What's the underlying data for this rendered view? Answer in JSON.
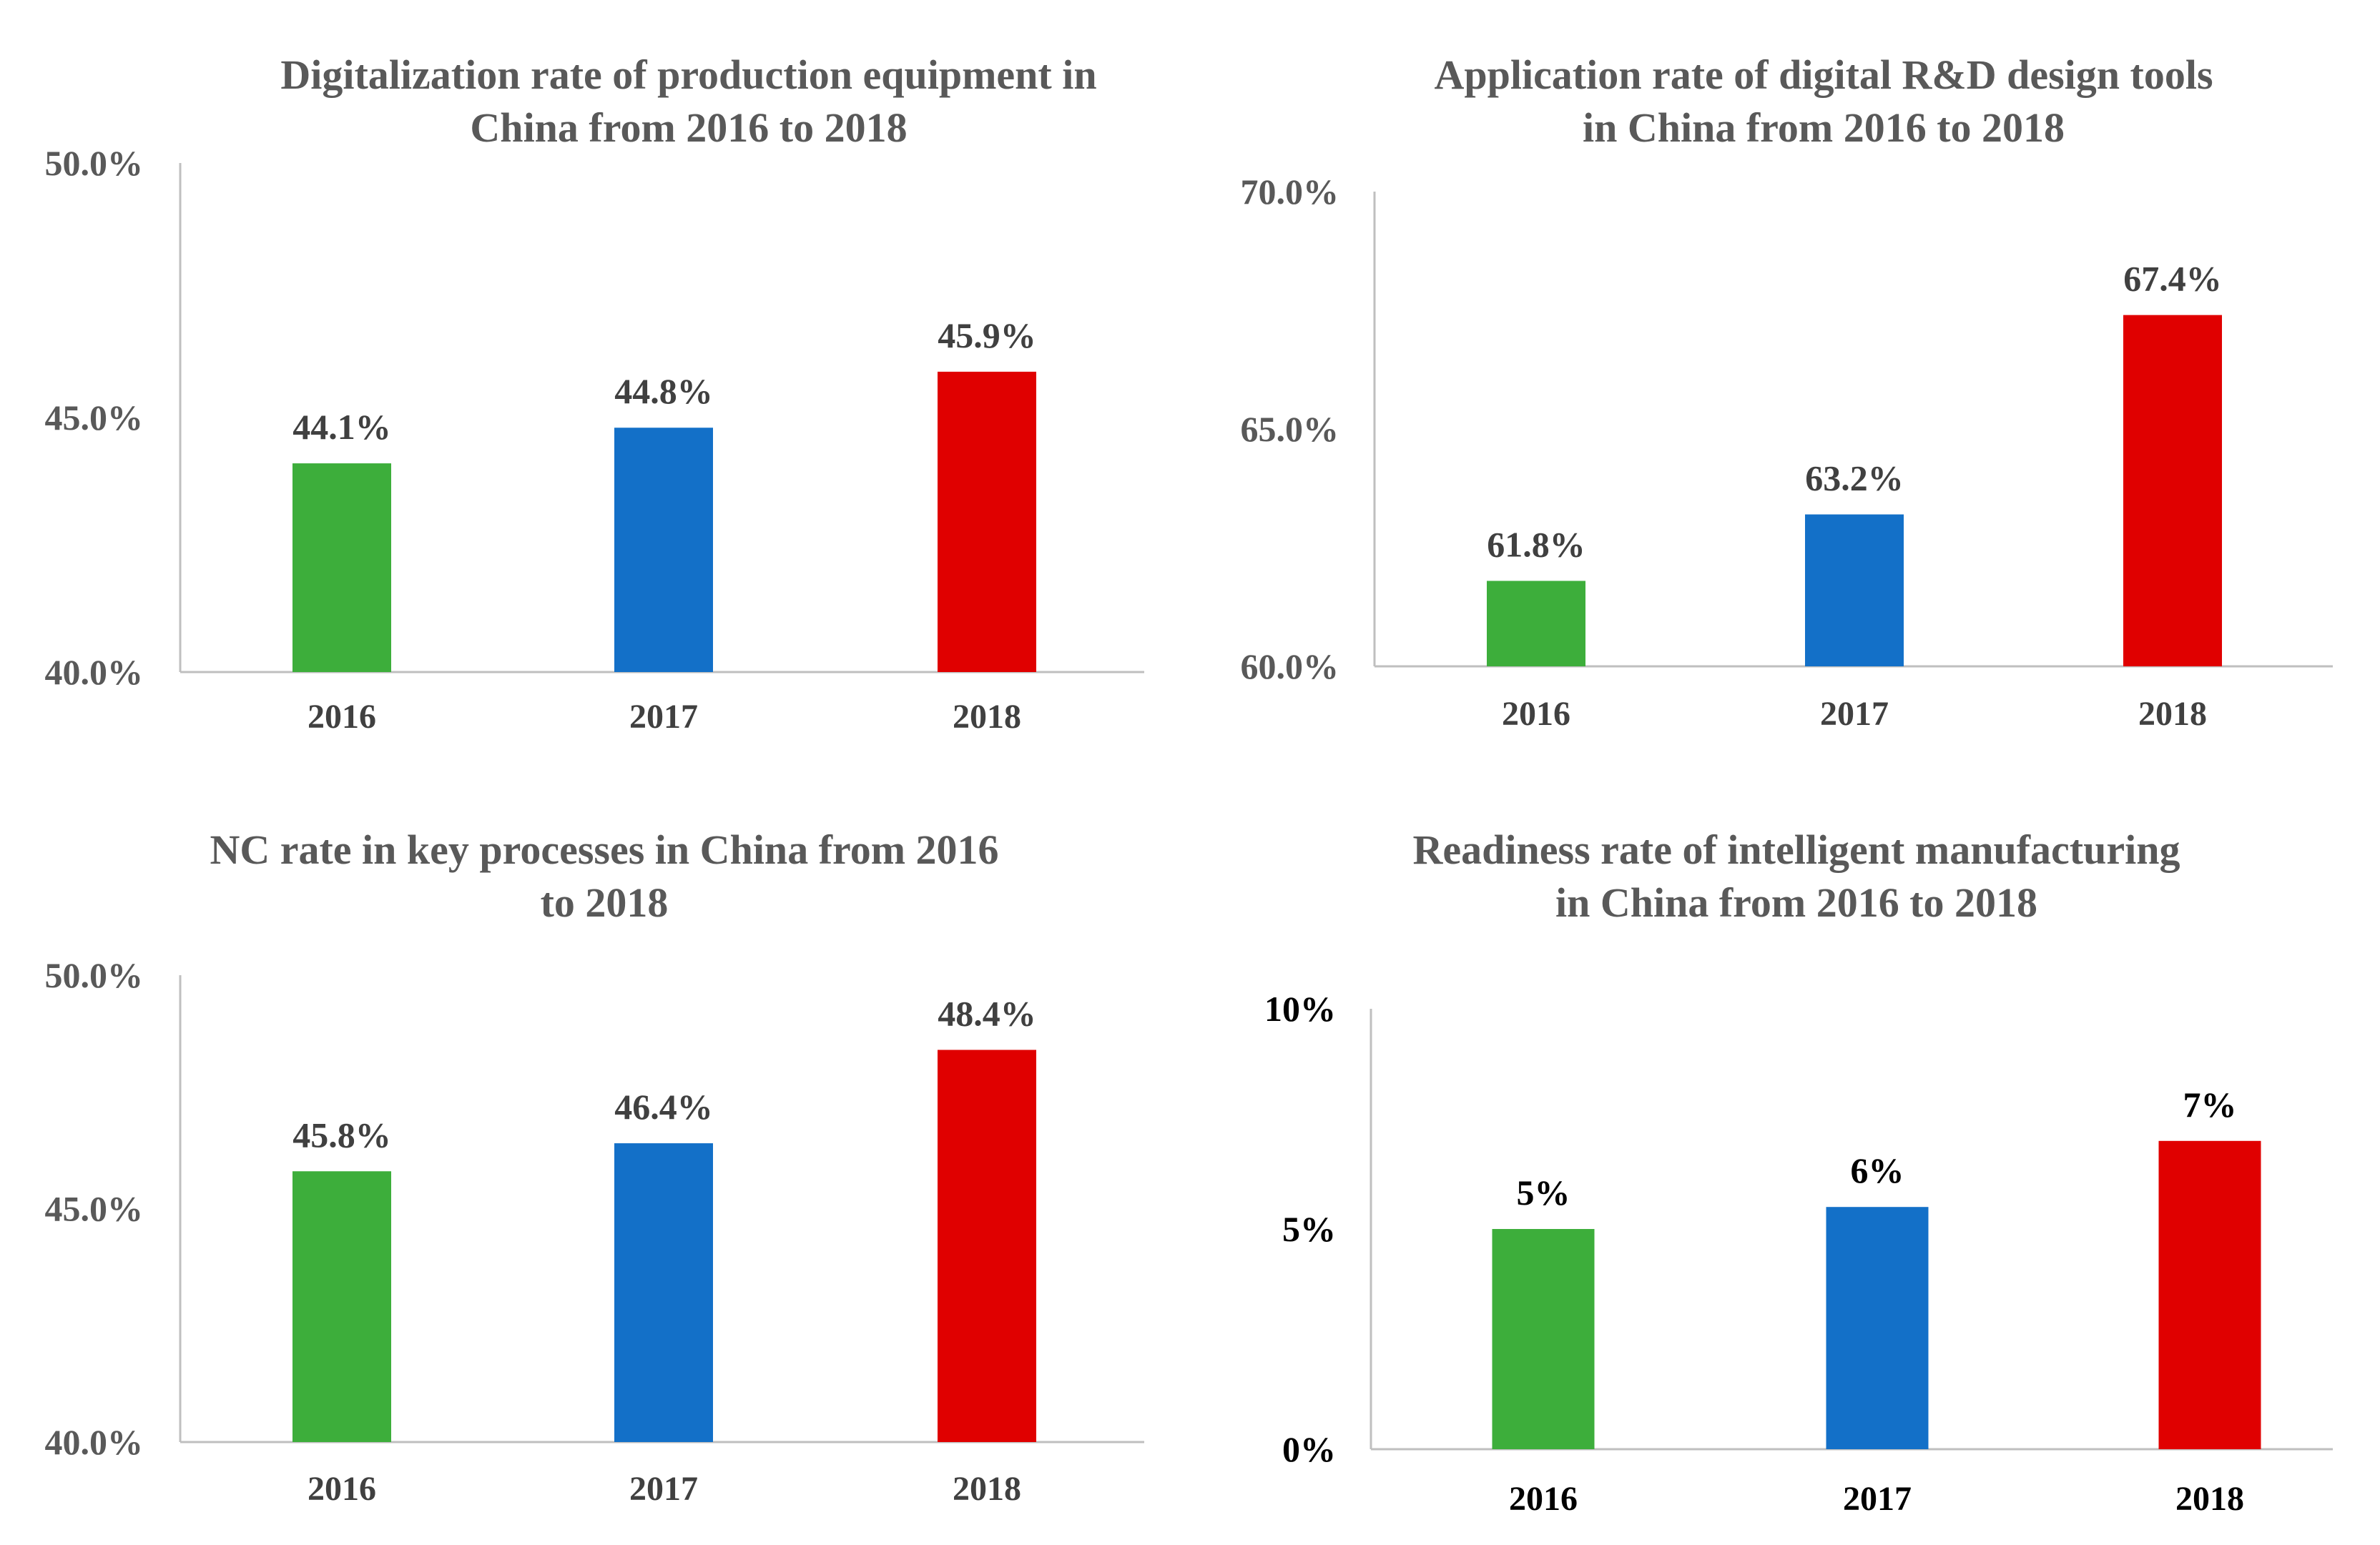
{
  "colors": [
    "#3DAE3B",
    "#1370C8",
    "#E00000"
  ],
  "chart_data": [
    {
      "type": "bar",
      "title": [
        "Digitalization rate of production equipment in",
        "China from 2016 to 2018"
      ],
      "categories": [
        "2016",
        "2017",
        "2018"
      ],
      "values": [
        44.1,
        44.8,
        45.9
      ],
      "value_labels": [
        "44.1%",
        "44.8%",
        "45.9%"
      ],
      "ylim": [
        40,
        50
      ],
      "yticks": [
        40,
        45,
        50
      ],
      "ytick_labels": [
        "40.0%",
        "45.0%",
        "50.0%"
      ],
      "xlabel": "",
      "ylabel": "",
      "grid": false,
      "legend": "none"
    },
    {
      "type": "bar",
      "title": [
        "Application rate of digital R&D design tools",
        "in China from 2016 to 2018"
      ],
      "categories": [
        "2016",
        "2017",
        "2018"
      ],
      "values": [
        61.8,
        63.2,
        67.4
      ],
      "value_labels": [
        "61.8%",
        "63.2%",
        "67.4%"
      ],
      "ylim": [
        60,
        70
      ],
      "yticks": [
        60,
        65,
        70
      ],
      "ytick_labels": [
        "60.0%",
        "65.0%",
        "70.0%"
      ],
      "xlabel": "",
      "ylabel": "",
      "grid": false,
      "legend": "none"
    },
    {
      "type": "bar",
      "title": [
        "NC rate in key processes in China from 2016",
        "to 2018"
      ],
      "categories": [
        "2016",
        "2017",
        "2018"
      ],
      "values": [
        45.8,
        46.4,
        48.4
      ],
      "value_labels": [
        "45.8%",
        "46.4%",
        "48.4%"
      ],
      "ylim": [
        40,
        50
      ],
      "yticks": [
        40,
        45,
        50
      ],
      "ytick_labels": [
        "40.0%",
        "45.0%",
        "50.0%"
      ],
      "xlabel": "",
      "ylabel": "",
      "grid": false,
      "legend": "none"
    },
    {
      "type": "bar",
      "title": [
        "Readiness rate of intelligent manufacturing",
        "in China from 2016 to 2018"
      ],
      "categories": [
        "2016",
        "2017",
        "2018"
      ],
      "values": [
        5,
        5.5,
        7
      ],
      "value_labels": [
        "5%",
        "6%",
        "7%"
      ],
      "ylim": [
        0,
        10
      ],
      "yticks": [
        0,
        5,
        10
      ],
      "ytick_labels": [
        "0%",
        "5%",
        "10%"
      ],
      "xlabel": "",
      "ylabel": "",
      "grid": false,
      "legend": "none"
    }
  ]
}
